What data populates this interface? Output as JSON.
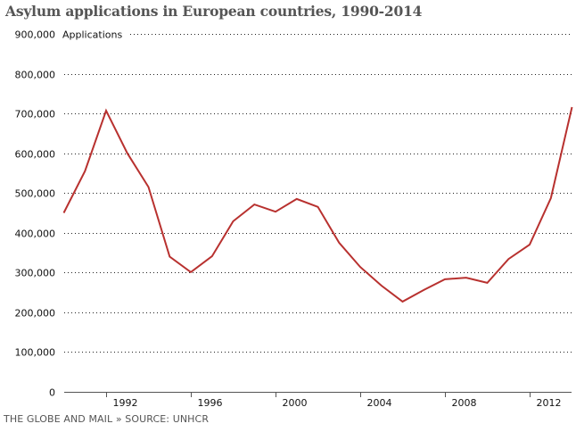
{
  "chart_data": {
    "type": "line",
    "title": "Asylum applications in European countries, 1990-2014",
    "ylabel": "Applications",
    "xlabel": "",
    "source": "THE GLOBE AND MAIL » SOURCE: UNHCR",
    "xlim": [
      1990,
      2014
    ],
    "ylim": [
      0,
      900000
    ],
    "grid": true,
    "legend": "none",
    "x_ticks": [
      1992,
      1996,
      2000,
      2004,
      2008,
      2012
    ],
    "x_tick_labels": [
      "1992",
      "1996",
      "2000",
      "2004",
      "2008",
      "2012"
    ],
    "y_ticks": [
      0,
      100000,
      200000,
      300000,
      400000,
      500000,
      600000,
      700000,
      800000,
      900000
    ],
    "y_tick_labels": [
      "0",
      "100,000",
      "200,000",
      "300,000",
      "400,000",
      "500,000",
      "600,000",
      "700,000",
      "800,000",
      "900,000"
    ],
    "series": [
      {
        "name": "Applications",
        "color": "#b8312f",
        "x": [
          1990,
          1991,
          1992,
          1993,
          1994,
          1995,
          1996,
          1997,
          1998,
          1999,
          2000,
          2001,
          2002,
          2003,
          2004,
          2005,
          2006,
          2007,
          2008,
          2009,
          2010,
          2011,
          2012,
          2013,
          2014
        ],
        "values": [
          450000,
          555000,
          707000,
          600000,
          515000,
          340000,
          301000,
          341000,
          429000,
          471000,
          453000,
          485000,
          465000,
          375000,
          314000,
          267000,
          227000,
          256000,
          283000,
          287000,
          274000,
          334000,
          370000,
          487000,
          716000
        ]
      }
    ]
  }
}
